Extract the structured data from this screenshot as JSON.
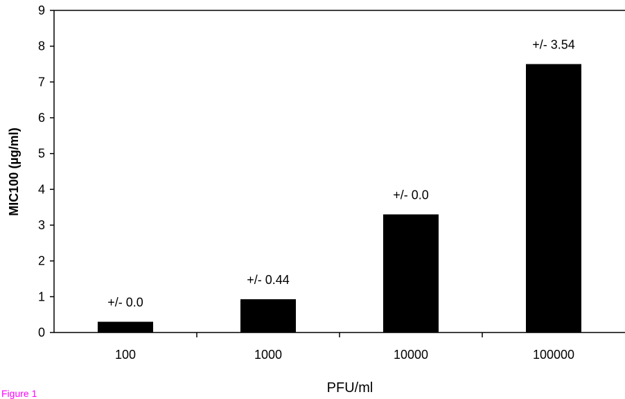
{
  "caption": "Figure 1",
  "colors": {
    "bar": "#000000",
    "axis": "#000000",
    "caption": "#ff00ff"
  },
  "chart_data": {
    "type": "bar",
    "categories": [
      "100",
      "1000",
      "10000",
      "100000"
    ],
    "values": [
      0.3,
      0.93,
      3.3,
      7.5
    ],
    "annotations": [
      "+/- 0.0",
      "+/- 0.44",
      "+/- 0.0",
      "+/- 3.54"
    ],
    "xlabel": "PFU/ml",
    "ylabel": "MIC100 (µg/ml)",
    "ylim": [
      0,
      9
    ],
    "yticks": [
      0,
      1,
      2,
      3,
      4,
      5,
      6,
      7,
      8,
      9
    ],
    "grid": false,
    "legend": "none"
  }
}
